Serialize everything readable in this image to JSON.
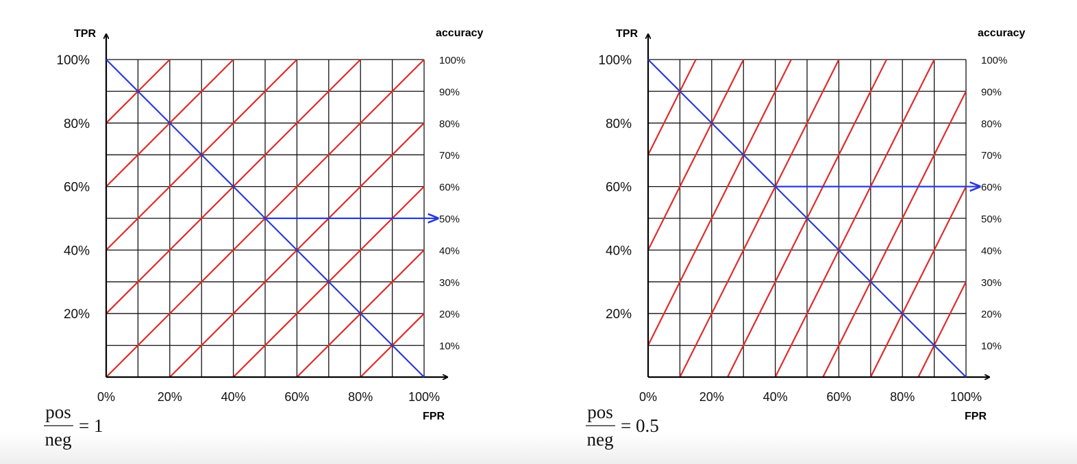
{
  "chart_data": [
    {
      "type": "line",
      "x_axis_label": "FPR",
      "y_axis_label": "TPR",
      "right_axis_label": "accuracy",
      "x_tick_labels": [
        "0%",
        "20%",
        "40%",
        "60%",
        "80%",
        "100%"
      ],
      "y_tick_labels": [
        "20%",
        "40%",
        "60%",
        "80%",
        "100%"
      ],
      "accuracy_tick_labels": [
        "10%",
        "20%",
        "30%",
        "40%",
        "50%",
        "60%",
        "70%",
        "80%",
        "90%",
        "100%"
      ],
      "xlim": [
        0,
        100
      ],
      "ylim": [
        0,
        100
      ],
      "grid": true,
      "ratio": {
        "numerator": "pos",
        "denominator": "neg",
        "value": "= 1"
      },
      "pos_neg_ratio": 1,
      "iso_accuracy_lines": [
        10,
        20,
        30,
        40,
        50,
        60,
        70,
        80,
        90,
        100
      ],
      "roc_line": {
        "x": [
          0,
          100
        ],
        "y": [
          100,
          0
        ]
      },
      "optimal_point": {
        "fpr": 50,
        "tpr": 50,
        "accuracy": 50
      },
      "colors": {
        "iso_accuracy": "#e02a2a",
        "roc": "#2a3ad6"
      }
    },
    {
      "type": "line",
      "x_axis_label": "FPR",
      "y_axis_label": "TPR",
      "right_axis_label": "accuracy",
      "x_tick_labels": [
        "0%",
        "20%",
        "40%",
        "60%",
        "80%",
        "100%"
      ],
      "y_tick_labels": [
        "20%",
        "40%",
        "60%",
        "80%",
        "100%"
      ],
      "accuracy_tick_labels": [
        "10%",
        "20%",
        "30%",
        "40%",
        "50%",
        "60%",
        "70%",
        "80%",
        "90%",
        "100%"
      ],
      "xlim": [
        0,
        100
      ],
      "ylim": [
        0,
        100
      ],
      "grid": true,
      "ratio": {
        "numerator": "pos",
        "denominator": "neg",
        "value": "= 0.5"
      },
      "pos_neg_ratio": 0.5,
      "iso_accuracy_lines": [
        10,
        20,
        30,
        40,
        50,
        60,
        70,
        80,
        90,
        100
      ],
      "roc_line": {
        "x": [
          0,
          100
        ],
        "y": [
          100,
          0
        ]
      },
      "optimal_point": {
        "fpr": 40,
        "tpr": 60,
        "accuracy": 60
      },
      "colors": {
        "iso_accuracy": "#e02a2a",
        "roc": "#2a3ad6"
      }
    }
  ]
}
